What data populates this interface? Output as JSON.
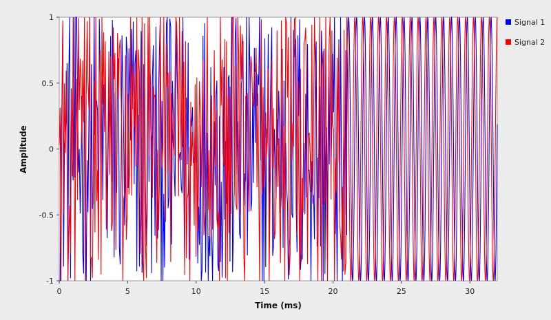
{
  "chart_data": {
    "type": "line",
    "xlabel": "Time (ms)",
    "ylabel": "Amplitude",
    "xlim": [
      0,
      32
    ],
    "ylim": [
      -1,
      1
    ],
    "x_ticks": [
      {
        "value": 0,
        "label": "0"
      },
      {
        "value": 5,
        "label": "5"
      },
      {
        "value": 10,
        "label": "10"
      },
      {
        "value": 15,
        "label": "15"
      },
      {
        "value": 20,
        "label": "20"
      },
      {
        "value": 25,
        "label": "25"
      },
      {
        "value": 30,
        "label": "30"
      }
    ],
    "y_ticks": [
      {
        "value": 1,
        "label": "1"
      },
      {
        "value": 0.5,
        "label": "0.5"
      },
      {
        "value": 0,
        "label": "0"
      },
      {
        "value": -0.5,
        "label": "-0.5"
      },
      {
        "value": -1,
        "label": "-1"
      }
    ],
    "grid": false,
    "legend_position": "right",
    "series": [
      {
        "name": "Signal 1",
        "color": "#0000ff",
        "noisy_segment": {
          "x_start": 0,
          "x_end": 21,
          "samples": 330,
          "amplitude_range": [
            -1,
            1
          ]
        },
        "sine_segment": {
          "x_start": 21,
          "x_end": 32,
          "frequency_khz": 1.73,
          "amplitude": 1,
          "phase_rad": 0
        }
      },
      {
        "name": "Signal 2",
        "color": "#ff0000",
        "noisy_segment": {
          "x_start": 0,
          "x_end": 21,
          "samples": 330,
          "amplitude_range": [
            -1,
            1
          ]
        },
        "sine_segment": {
          "x_start": 21,
          "x_end": 32,
          "frequency_khz": 1.73,
          "amplitude": 1,
          "phase_rad": 1.4
        }
      }
    ]
  }
}
